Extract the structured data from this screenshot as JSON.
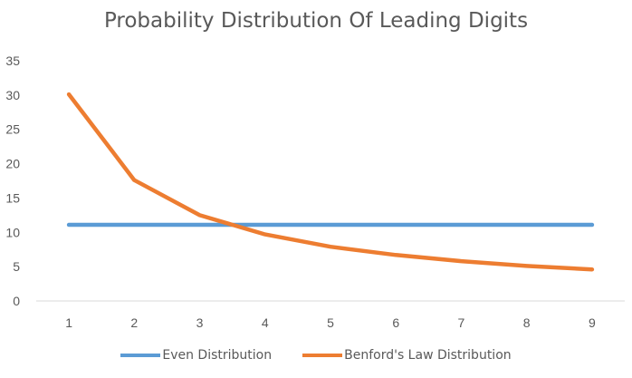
{
  "chart_data": {
    "type": "line",
    "title": "Probability Distribution Of Leading Digits",
    "xlabel": "",
    "ylabel": "",
    "x": [
      1,
      2,
      3,
      4,
      5,
      6,
      7,
      8,
      9
    ],
    "ylim": [
      0,
      35
    ],
    "yticks": [
      0,
      5,
      10,
      15,
      20,
      25,
      30,
      35
    ],
    "grid": false,
    "legend_position": "bottom",
    "series": [
      {
        "name": "Even Distribution",
        "color": "#5B9BD5",
        "values": [
          11.1,
          11.1,
          11.1,
          11.1,
          11.1,
          11.1,
          11.1,
          11.1,
          11.1
        ]
      },
      {
        "name": "Benford's Law Distribution",
        "color": "#ED7D31",
        "values": [
          30.1,
          17.6,
          12.5,
          9.7,
          7.9,
          6.7,
          5.8,
          5.1,
          4.6
        ]
      }
    ]
  }
}
